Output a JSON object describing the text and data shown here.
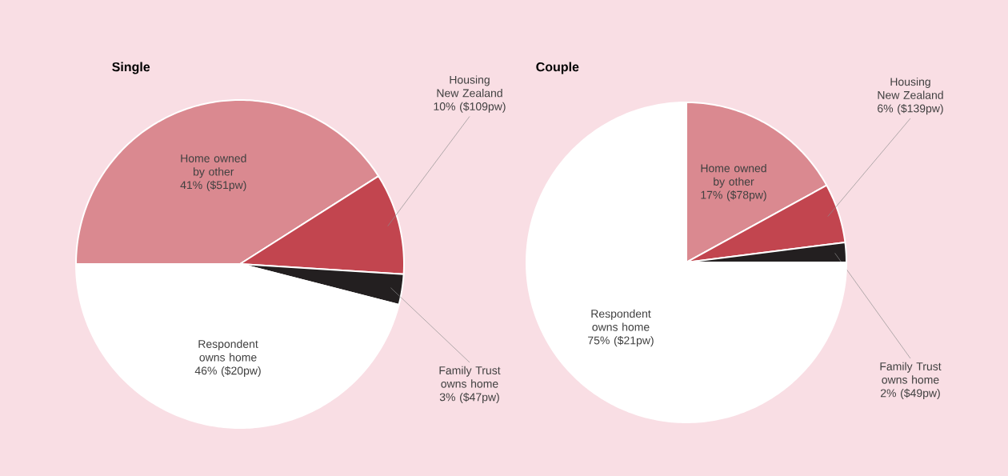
{
  "chart_data": [
    {
      "type": "pie",
      "title": "Single",
      "categories": [
        "Home owned by other",
        "Housing New Zealand",
        "Family Trust owns home",
        "Respondent owns home"
      ],
      "values": [
        41,
        10,
        3,
        46
      ],
      "value_labels": [
        "41% ($51pw)",
        "10% ($109pw)",
        "3% ($47pw)",
        "46% ($20pw)"
      ],
      "colors": [
        "#da8990",
        "#c2454f",
        "#231f20",
        "#ffffff"
      ]
    },
    {
      "type": "pie",
      "title": "Couple",
      "categories": [
        "Home owned by other",
        "Housing New Zealand",
        "Family Trust owns home",
        "Respondent owns home"
      ],
      "values": [
        17,
        6,
        2,
        75
      ],
      "value_labels": [
        "17% ($78pw)",
        "6% ($139pw)",
        "2% ($49pw)",
        "75% ($21pw)"
      ],
      "colors": [
        "#da8990",
        "#c2454f",
        "#231f20",
        "#ffffff"
      ]
    }
  ]
}
